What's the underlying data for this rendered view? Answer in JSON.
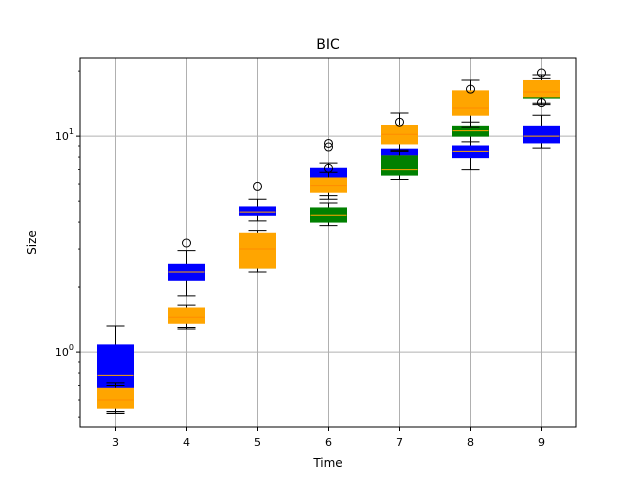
{
  "chart_data": {
    "type": "box",
    "title": "BIC",
    "xlabel": "Time",
    "ylabel": "Size",
    "y_scale": "log",
    "ylim": [
      0.45,
      23
    ],
    "y_ticks": [
      {
        "value": 1,
        "label": "10",
        "exp": "0"
      },
      {
        "value": 10,
        "label": "10",
        "exp": "1"
      }
    ],
    "categories": [
      "3",
      "4",
      "5",
      "6",
      "7",
      "8",
      "9"
    ],
    "grid": true,
    "series": [
      {
        "color": "#0000ff",
        "median_color": "#ffa500",
        "boxes": [
          {
            "x": "3",
            "whislo": 0.53,
            "q1": 0.57,
            "med": 0.78,
            "q3": 1.08,
            "whishi": 1.32,
            "fliers": []
          },
          {
            "x": "4",
            "whislo": 1.82,
            "q1": 2.15,
            "med": 2.35,
            "q3": 2.55,
            "whishi": 2.95,
            "fliers": [
              3.2
            ]
          },
          {
            "x": "5",
            "whislo": 4.05,
            "q1": 4.3,
            "med": 4.45,
            "q3": 4.7,
            "whishi": 5.1,
            "fliers": [
              5.85
            ]
          },
          {
            "x": "6",
            "whislo": 5.3,
            "q1": 5.8,
            "med": 6.3,
            "q3": 7.1,
            "whishi": 7.5,
            "fliers": [
              8.9,
              9.25
            ]
          },
          {
            "x": "7",
            "whislo": 7.0,
            "q1": 7.6,
            "med": 8.1,
            "q3": 8.7,
            "whishi": 9.4,
            "fliers": []
          },
          {
            "x": "8",
            "whislo": 7.0,
            "q1": 7.95,
            "med": 8.5,
            "q3": 9.0,
            "whishi": 10.8,
            "fliers": []
          },
          {
            "x": "9",
            "whislo": 8.8,
            "q1": 9.3,
            "med": 10.0,
            "q3": 11.1,
            "whishi": 12.5,
            "fliers": []
          }
        ]
      },
      {
        "color": "#008000",
        "median_color": "#ffa500",
        "boxes": [
          {
            "x": "3",
            "whislo": 0.53,
            "q1": 0.56,
            "med": 0.6,
            "q3": 0.66,
            "whishi": 0.7,
            "fliers": []
          },
          {
            "x": "4",
            "whislo": 1.3,
            "q1": 1.37,
            "med": 1.42,
            "q3": 1.5,
            "whishi": 1.55,
            "fliers": []
          },
          {
            "x": "5",
            "whislo": 2.35,
            "q1": 2.45,
            "med": 2.55,
            "q3": 2.65,
            "whishi": 2.75,
            "fliers": []
          },
          {
            "x": "6",
            "whislo": 3.85,
            "q1": 4.0,
            "med": 4.3,
            "q3": 4.65,
            "whishi": 4.9,
            "fliers": []
          },
          {
            "x": "7",
            "whislo": 6.3,
            "q1": 6.6,
            "med": 7.0,
            "q3": 8.1,
            "whishi": 8.6,
            "fliers": []
          },
          {
            "x": "8",
            "whislo": 9.4,
            "q1": 10.0,
            "med": 10.6,
            "q3": 11.1,
            "whishi": 11.6,
            "fliers": []
          },
          {
            "x": "9",
            "whislo": 14.0,
            "q1": 15.0,
            "med": 15.8,
            "q3": 16.8,
            "whishi": 18.5,
            "fliers": []
          }
        ]
      },
      {
        "color": "#ffa500",
        "median_color": "#ff8c00",
        "boxes": [
          {
            "x": "3",
            "whislo": 0.52,
            "q1": 0.55,
            "med": 0.6,
            "q3": 0.68,
            "whishi": 0.72,
            "fliers": []
          },
          {
            "x": "4",
            "whislo": 1.28,
            "q1": 1.36,
            "med": 1.45,
            "q3": 1.6,
            "whishi": 1.65,
            "fliers": []
          },
          {
            "x": "5",
            "whislo": 2.35,
            "q1": 2.45,
            "med": 3.0,
            "q3": 3.55,
            "whishi": 3.65,
            "fliers": []
          },
          {
            "x": "6",
            "whislo": 5.1,
            "q1": 5.5,
            "med": 5.9,
            "q3": 6.4,
            "whishi": 6.8,
            "fliers": [
              7.1
            ]
          },
          {
            "x": "7",
            "whislo": 8.5,
            "q1": 9.2,
            "med": 10.2,
            "q3": 11.2,
            "whishi": 12.8,
            "fliers": [
              11.6
            ]
          },
          {
            "x": "8",
            "whislo": 11.0,
            "q1": 12.5,
            "med": 13.5,
            "q3": 16.2,
            "whishi": 18.2,
            "fliers": [
              16.5
            ]
          },
          {
            "x": "9",
            "whislo": 14.2,
            "q1": 15.2,
            "med": 16.0,
            "q3": 18.1,
            "whishi": 19.2,
            "fliers": [
              14.3,
              19.6
            ]
          }
        ]
      }
    ]
  }
}
